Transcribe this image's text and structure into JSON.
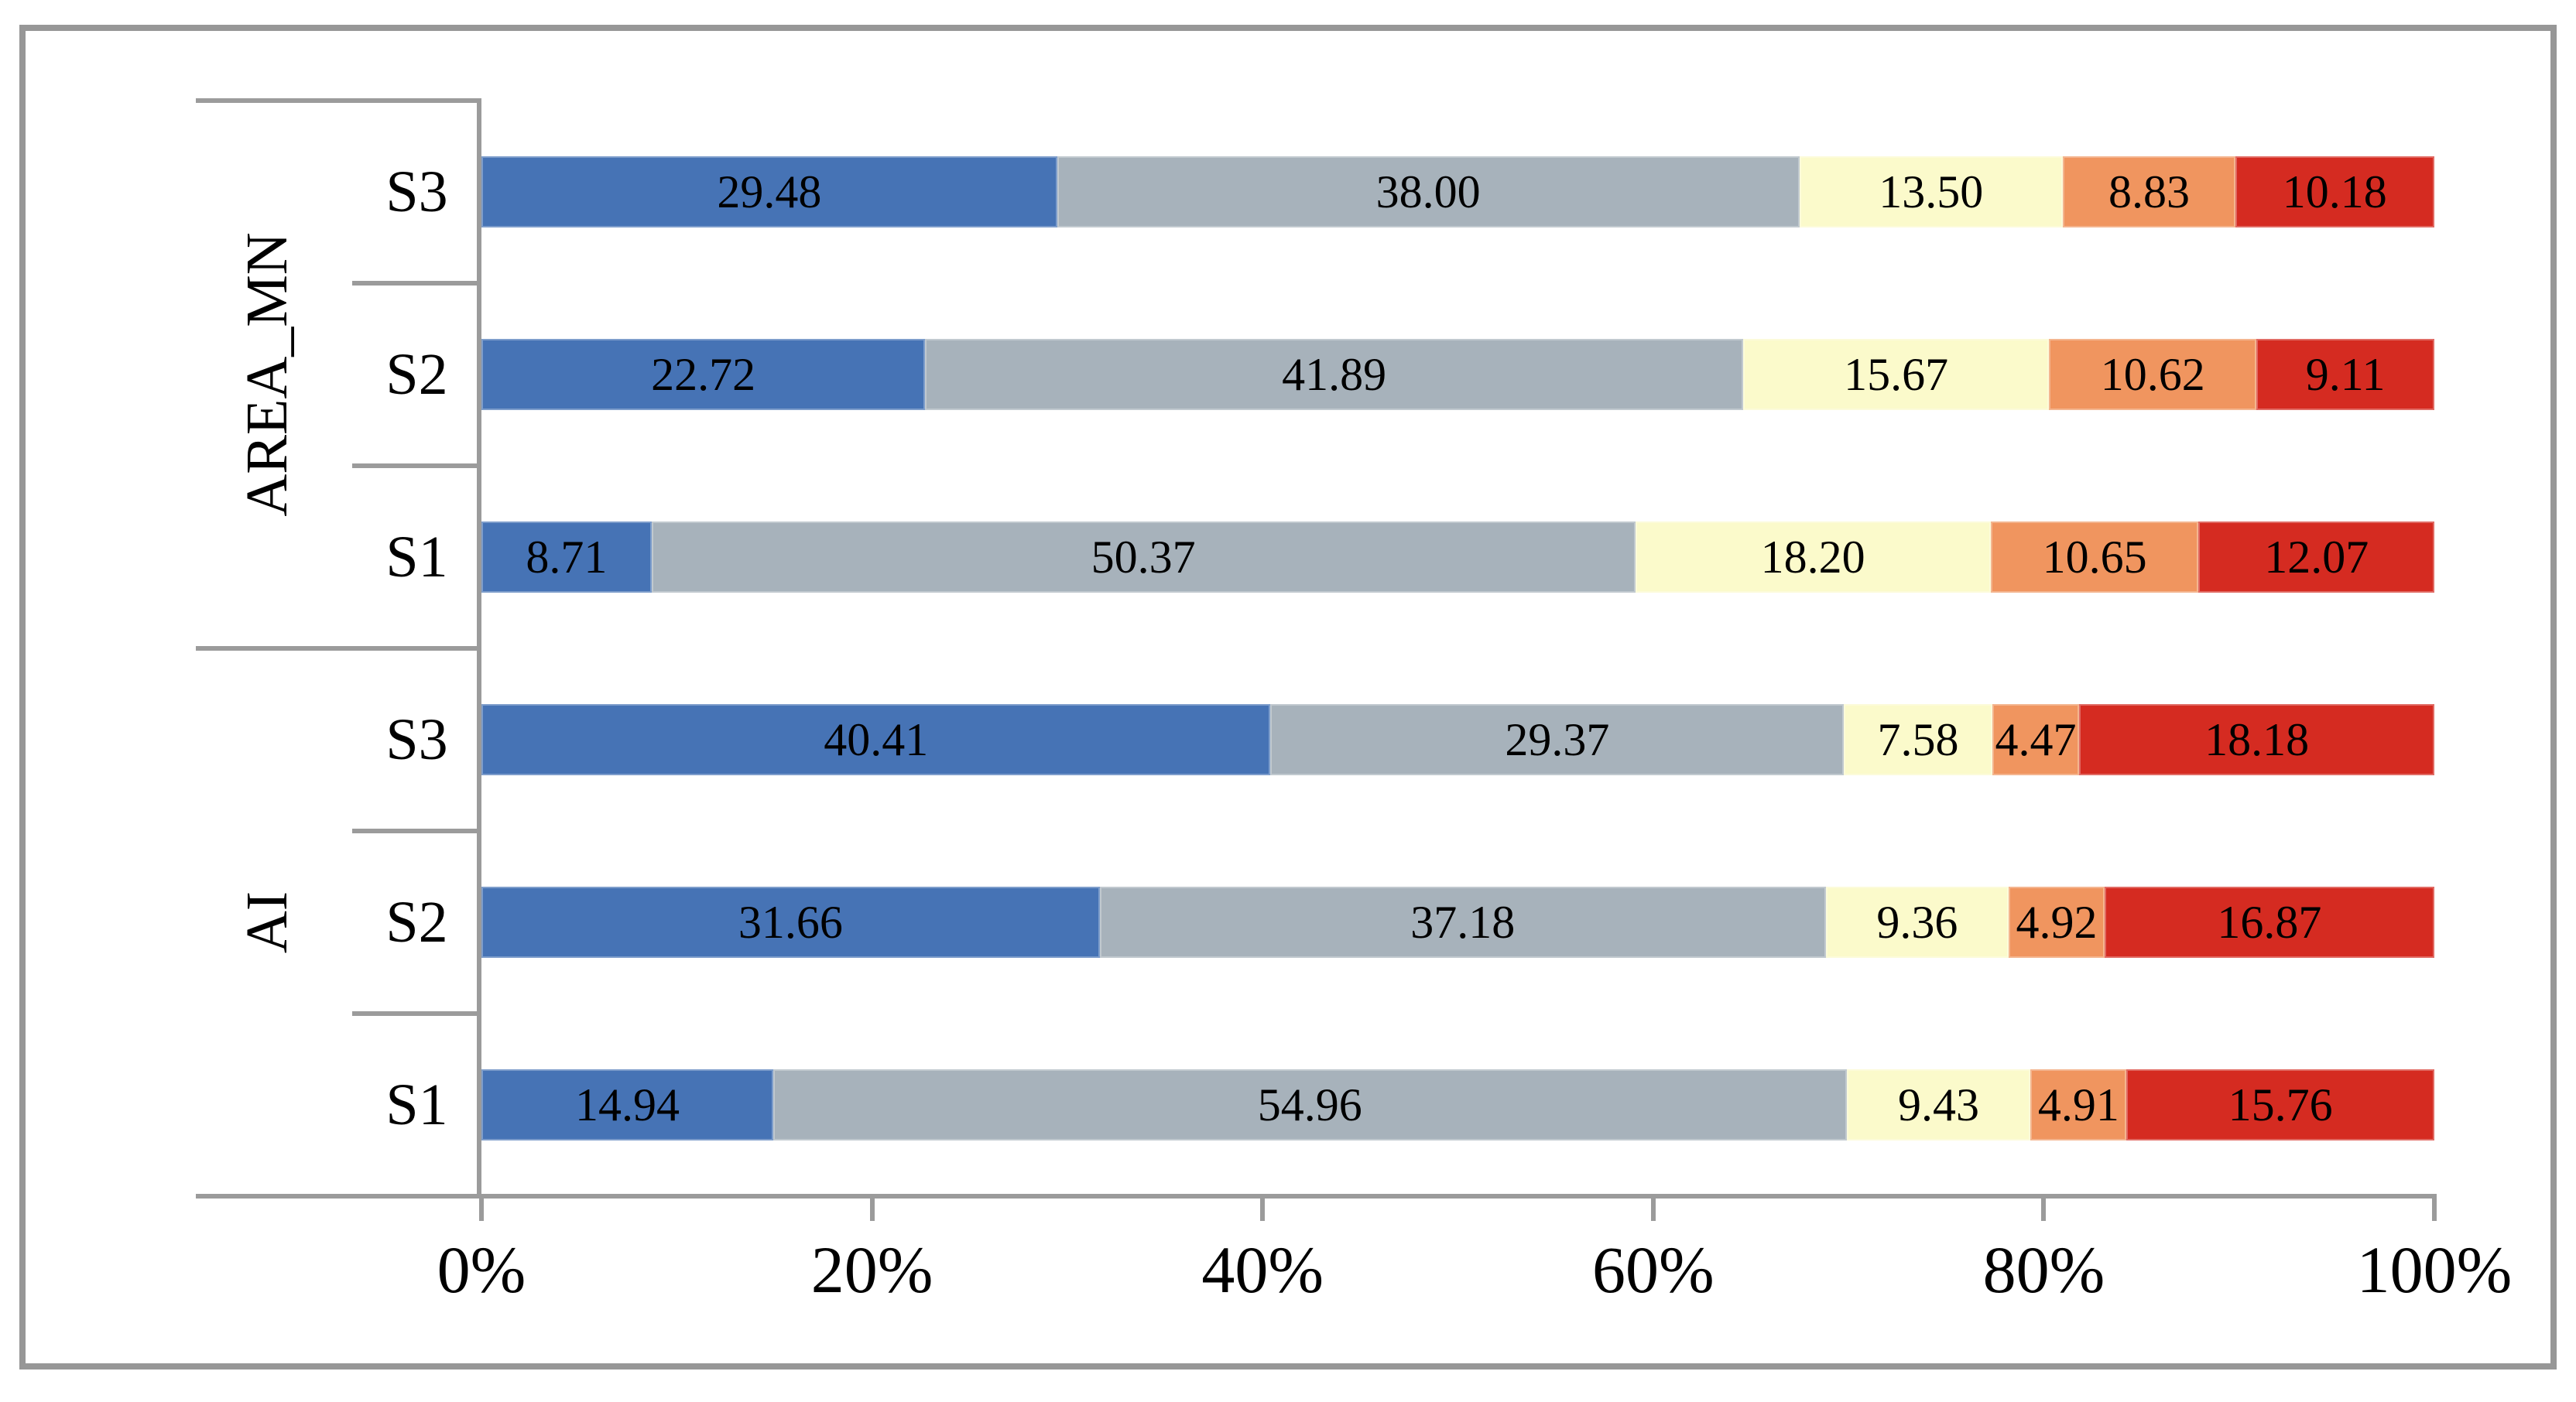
{
  "chart_data": {
    "type": "bar",
    "orientation": "horizontal",
    "stacked": true,
    "unit": "percent",
    "title": "",
    "xlabel": "",
    "ylabel": "",
    "grid": false,
    "legend": null,
    "x_axis": {
      "min": 0,
      "max": 100,
      "ticks": [
        "0%",
        "20%",
        "40%",
        "60%",
        "80%",
        "100%"
      ]
    },
    "segment_colors": [
      "#4673B5",
      "#A7B2BB",
      "#FBFACB",
      "#F0955F",
      "#D52B21"
    ],
    "groups": [
      {
        "label": "AREA_MN",
        "rows": [
          {
            "label": "S3",
            "values": [
              29.48,
              38.0,
              13.5,
              8.83,
              10.18
            ],
            "labels": [
              "29.48",
              "38.00",
              "13.50",
              "8.83",
              "10.18"
            ]
          },
          {
            "label": "S2",
            "values": [
              22.72,
              41.89,
              15.67,
              10.62,
              9.11
            ],
            "labels": [
              "22.72",
              "41.89",
              "15.67",
              "10.62",
              "9.11"
            ]
          },
          {
            "label": "S1",
            "values": [
              8.71,
              50.37,
              18.2,
              10.65,
              12.07
            ],
            "labels": [
              "8.71",
              "50.37",
              "18.20",
              "10.65",
              "12.07"
            ]
          }
        ]
      },
      {
        "label": "AI",
        "rows": [
          {
            "label": "S3",
            "values": [
              40.41,
              29.37,
              7.58,
              4.47,
              18.18
            ],
            "labels": [
              "40.41",
              "29.37",
              "7.58",
              "4.47",
              "18.18"
            ]
          },
          {
            "label": "S2",
            "values": [
              31.66,
              37.18,
              9.36,
              4.92,
              16.87
            ],
            "labels": [
              "31.66",
              "37.18",
              "9.36",
              "4.92",
              "16.87"
            ]
          },
          {
            "label": "S1",
            "values": [
              14.94,
              54.96,
              9.43,
              4.91,
              15.76
            ],
            "labels": [
              "14.94",
              "54.96",
              "9.43",
              "4.91",
              "15.76"
            ]
          }
        ]
      }
    ]
  },
  "colors": {
    "background": "#FFFFFF",
    "frame_border": "#979797",
    "axis_lines": "#9B9B9B",
    "label_text": "#000000"
  }
}
